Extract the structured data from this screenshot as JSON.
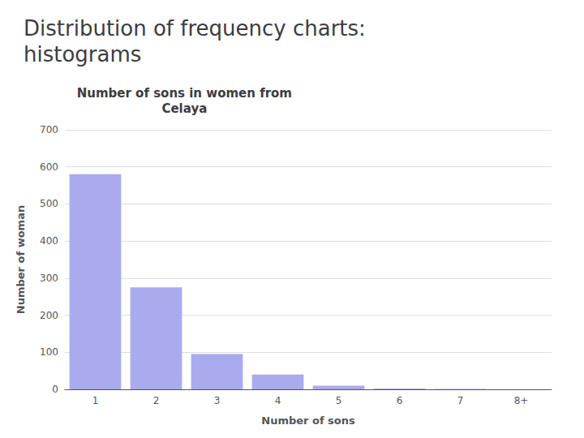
{
  "chart_data": {
    "type": "bar",
    "title": "Number of sons in women from\nCelaya",
    "annotations": [
      "Distribution of frequency charts:\nhistograms"
    ],
    "xlabel": "Number of sons",
    "ylabel": "Number of woman",
    "categories": [
      "1",
      "2",
      "3",
      "4",
      "5",
      "6",
      "7",
      "8+"
    ],
    "values": [
      580,
      275,
      95,
      40,
      10,
      2,
      1,
      0
    ],
    "color": "#aaaaee",
    "ylim": [
      0,
      700
    ],
    "yticks": [
      0,
      100,
      200,
      300,
      400,
      500,
      600,
      700
    ],
    "grid": true
  }
}
